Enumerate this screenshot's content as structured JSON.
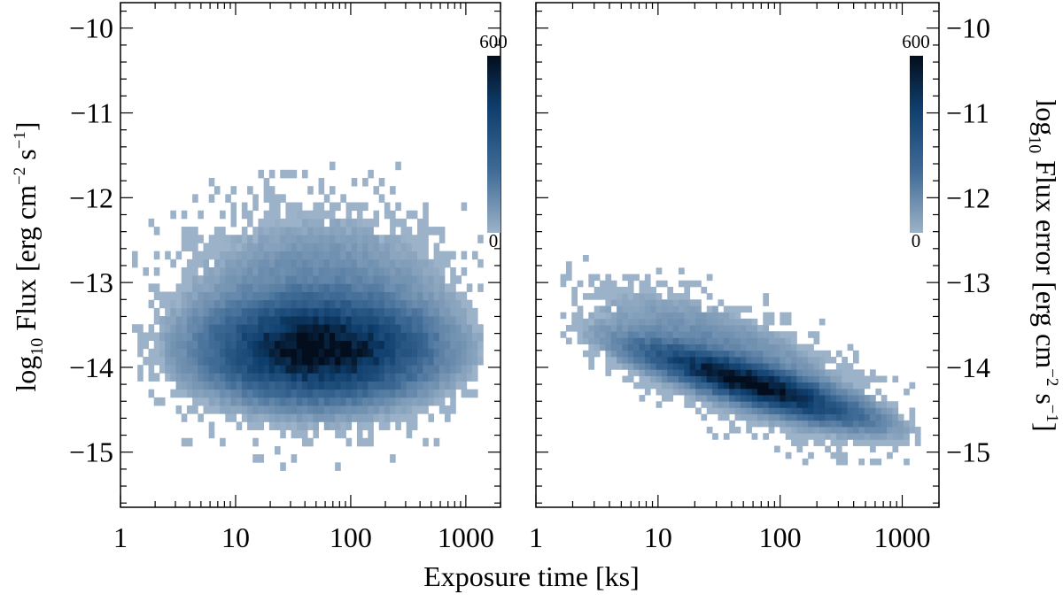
{
  "chart_data": [
    {
      "type": "heatmap",
      "panel": "left",
      "xscale": "log",
      "xlim": [
        1,
        2000
      ],
      "ylim": [
        -15.65,
        -9.7
      ],
      "xticks": [
        1,
        10,
        100,
        1000
      ],
      "xtick_labels": [
        "1",
        "10",
        "100",
        "1000"
      ],
      "yticks": [
        -10,
        -11,
        -12,
        -13,
        -14,
        -15
      ],
      "ytick_labels": [
        "−10",
        "−11",
        "−12",
        "−13",
        "−14",
        "−15"
      ],
      "ylabel_parts": [
        "log",
        "10",
        " Flux [erg cm",
        "−2",
        " s",
        "−1",
        "]"
      ],
      "colorbar": {
        "min": 0,
        "max": 600,
        "min_label": "0",
        "max_label": "600",
        "low_color": "#9cb2c8",
        "high_color": "#030d1c"
      },
      "density_model": {
        "description": "2D histogram counts per bin; x in log10(ks), y in log10 flux",
        "components": [
          {
            "x_center": 1.72,
            "y_center": -13.78,
            "sigma_x": 0.46,
            "sigma_y": 0.28,
            "correlation": 0.0,
            "peak": 600
          },
          {
            "x_center": 1.72,
            "y_center": -13.4,
            "sigma_x": 0.62,
            "sigma_y": 0.62,
            "correlation": 0.0,
            "peak": 45
          }
        ],
        "x_range": [
          0.1,
          3.15
        ],
        "y_range": [
          -15.6,
          -9.85
        ]
      }
    },
    {
      "type": "heatmap",
      "panel": "right",
      "xscale": "log",
      "xlim": [
        1,
        2000
      ],
      "ylim": [
        -15.65,
        -9.7
      ],
      "xticks": [
        1,
        10,
        100,
        1000
      ],
      "xtick_labels": [
        "1",
        "10",
        "100",
        "1000"
      ],
      "yticks": [
        -10,
        -11,
        -12,
        -13,
        -14,
        -15
      ],
      "ytick_labels": [
        "−10",
        "−11",
        "−12",
        "−13",
        "−14",
        "−15"
      ],
      "ylabel_parts": [
        "log",
        "10",
        " Flux error [erg cm",
        "−2",
        " s",
        "−1",
        "]"
      ],
      "colorbar": {
        "min": 0,
        "max": 600,
        "min_label": "0",
        "max_label": "600",
        "low_color": "#9cb2c8",
        "high_color": "#030d1c"
      },
      "density_model": {
        "description": "2D histogram counts per bin; flux error decreases with exposure time",
        "components": [
          {
            "x_center": 1.75,
            "y_center": -14.18,
            "sigma_x": 0.44,
            "sigma_y": 0.22,
            "correlation": -0.85,
            "peak": 600
          },
          {
            "x_center": 1.6,
            "y_center": -13.95,
            "sigma_x": 0.6,
            "sigma_y": 0.45,
            "correlation": -0.7,
            "peak": 40
          }
        ],
        "x_range": [
          0.2,
          3.15
        ],
        "y_range": [
          -15.6,
          -11.1
        ]
      }
    }
  ],
  "shared_xlabel": "Exposure time [ks]"
}
